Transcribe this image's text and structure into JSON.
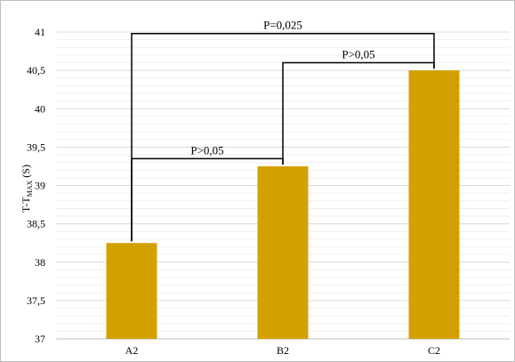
{
  "chart_data": {
    "type": "bar",
    "categories": [
      "A2",
      "B2",
      "C2"
    ],
    "values": [
      38.25,
      39.25,
      40.5
    ],
    "ylabel": {
      "main": "T-T",
      "subscript": "MAX",
      "suffix": " (S)"
    },
    "ylim": [
      37,
      41
    ],
    "y_ticks": [
      37,
      37.5,
      38,
      38.5,
      39,
      39.5,
      40,
      40.5,
      41
    ],
    "y_tick_labels": [
      "37",
      "37,5",
      "38",
      "38,5",
      "39",
      "39,5",
      "40",
      "40,5",
      "41"
    ],
    "grid": true,
    "bar_color": "#d4a000",
    "annotations": [
      {
        "from": "A2",
        "to": "B2",
        "label": "P>0,05",
        "level": 39.35
      },
      {
        "from": "B2",
        "to": "C2",
        "label": "P>0,05",
        "level": 40.6
      },
      {
        "from": "A2",
        "to": "C2",
        "label": "P=0,025",
        "level": 40.98
      }
    ]
  }
}
